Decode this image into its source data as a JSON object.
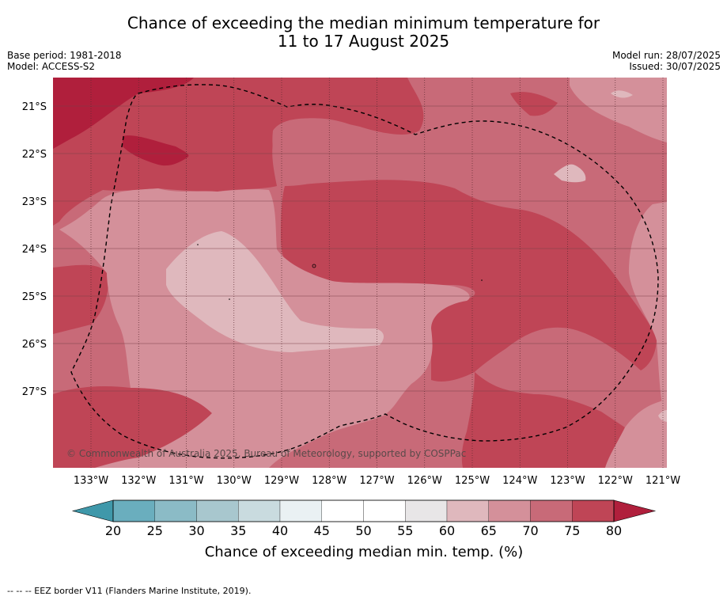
{
  "title": {
    "line1": "Chance of exceeding the median minimum temperature for",
    "line2": "11 to 17 August 2025"
  },
  "meta_left": {
    "base_period": "Base period: 1981-2018",
    "model": "Model: ACCESS-S2"
  },
  "meta_right": {
    "model_run": "Model run: 28/07/2025",
    "issued": "Issued: 30/07/2025"
  },
  "map": {
    "lat_ticks": [
      "21°S",
      "22°S",
      "23°S",
      "24°S",
      "25°S",
      "26°S",
      "27°S"
    ],
    "lon_ticks": [
      "133°W",
      "132°W",
      "131°W",
      "130°W",
      "129°W",
      "128°W",
      "127°W",
      "126°W",
      "125°W",
      "124°W",
      "123°W",
      "122°W",
      "121°W"
    ],
    "copyright": "© Commonwealth of Australia 2025, Bureau of Meteorology, supported by COSPPac",
    "fill_colors": {
      "c60_65": "#dfb8bd",
      "c65_70": "#d4909a",
      "c70_75": "#c86a78",
      "c75_80": "#bf4556",
      "c80_plus": "#b01f3c"
    }
  },
  "colorbar": {
    "ticks": [
      "20",
      "25",
      "30",
      "35",
      "40",
      "45",
      "50",
      "55",
      "60",
      "65",
      "70",
      "75",
      "80"
    ],
    "colors": [
      "#3f98aa",
      "#6aaebe",
      "#8bbbc6",
      "#a8c7ce",
      "#c9dbdf",
      "#eaf1f3",
      "#ffffff",
      "#ffffff",
      "#e8e6e7",
      "#dfb8bd",
      "#d4909a",
      "#c86a78",
      "#bf4556",
      "#b01f3c"
    ],
    "label": "Chance of exceeding median min. temp. (%)"
  },
  "footer": "--  --  -- EEZ border V11 (Flanders Marine Institute, 2019)."
}
